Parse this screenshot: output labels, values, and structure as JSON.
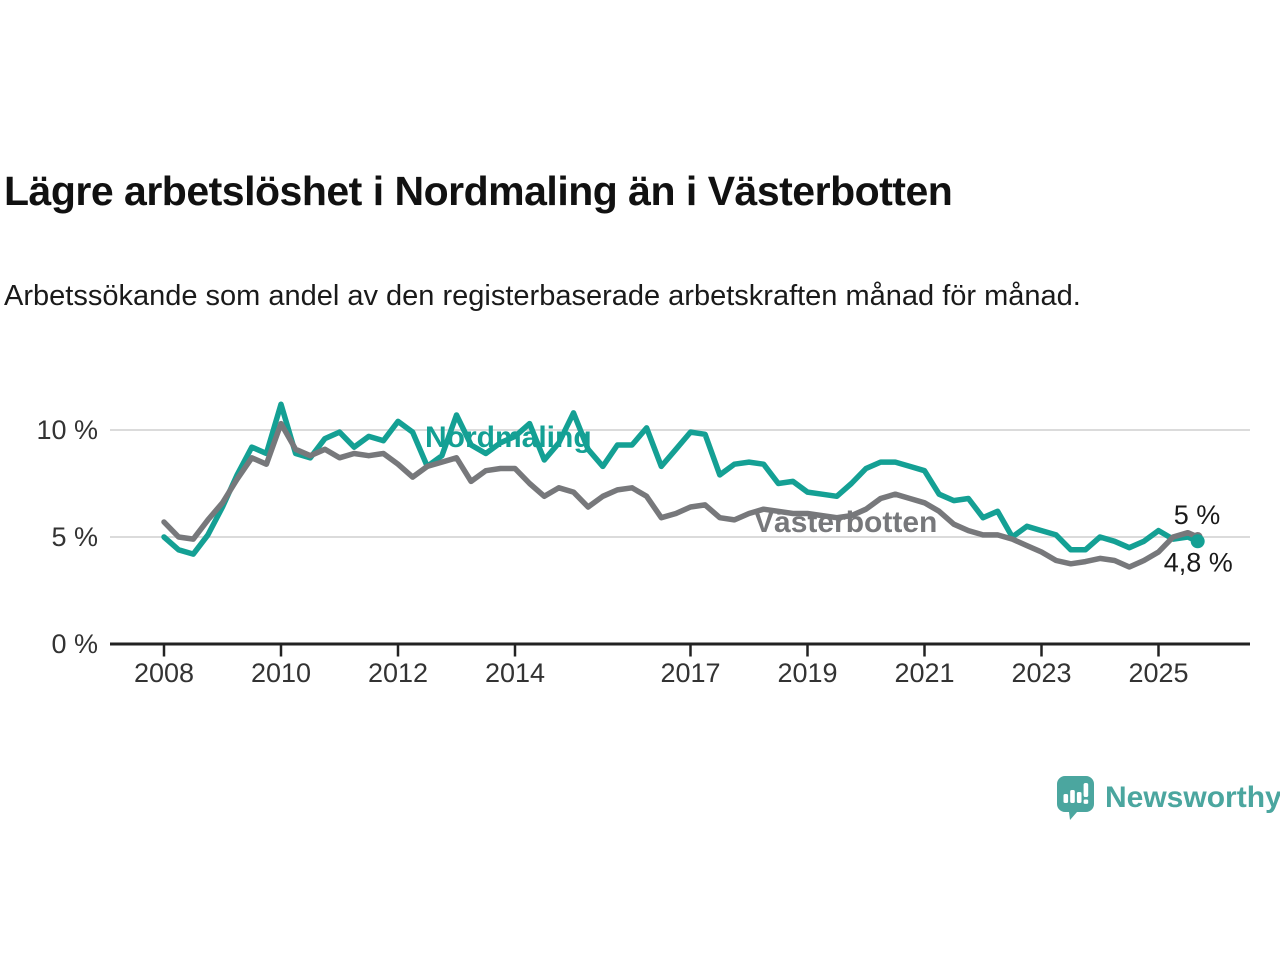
{
  "title": "Lägre arbetslöshet i Nordmaling än i Västerbotten",
  "subtitle": "Arbetssökande som andel av den registerbaserade arbetskraften månad för månad.",
  "brand": {
    "name": "Newsworthy",
    "color": "#4BA69F",
    "icon": "newsworthy-speech-bubble-bar-chart-icon"
  },
  "chart_data": {
    "type": "line",
    "title": "Lägre arbetslöshet i Nordmaling än i Västerbotten",
    "xlabel": "",
    "ylabel": "",
    "grid": "horizontal",
    "grid_color": "#DBDBDB",
    "axis_color": "#222222",
    "tick_label_color": "#333333",
    "value_label_color": "#1a1a1a",
    "ylim": [
      0,
      11.6
    ],
    "xlim": [
      2007.9,
      2025.95
    ],
    "y_ticks": [
      {
        "value": 0,
        "label": "0 %"
      },
      {
        "value": 5,
        "label": "5 %"
      },
      {
        "value": 10,
        "label": "10 %"
      }
    ],
    "x_ticks": [
      {
        "value": 2008,
        "label": "2008"
      },
      {
        "value": 2010,
        "label": "2010"
      },
      {
        "value": 2012,
        "label": "2012"
      },
      {
        "value": 2014,
        "label": "2014"
      },
      {
        "value": 2017,
        "label": "2017"
      },
      {
        "value": 2019,
        "label": "2019"
      },
      {
        "value": 2021,
        "label": "2021"
      },
      {
        "value": 2023,
        "label": "2023"
      },
      {
        "value": 2025,
        "label": "2025"
      }
    ],
    "x": [
      2008,
      2008.25,
      2008.5,
      2008.75,
      2009,
      2009.25,
      2009.5,
      2009.75,
      2010,
      2010.25,
      2010.5,
      2010.75,
      2011,
      2011.25,
      2011.5,
      2011.75,
      2012,
      2012.25,
      2012.5,
      2012.75,
      2013,
      2013.25,
      2013.5,
      2013.75,
      2014,
      2014.25,
      2014.5,
      2014.75,
      2015,
      2015.25,
      2015.5,
      2015.75,
      2016,
      2016.25,
      2016.5,
      2016.75,
      2017,
      2017.25,
      2017.5,
      2017.75,
      2018,
      2018.25,
      2018.5,
      2018.75,
      2019,
      2019.25,
      2019.5,
      2019.75,
      2020,
      2020.25,
      2020.5,
      2020.75,
      2021,
      2021.25,
      2021.5,
      2021.75,
      2022,
      2022.25,
      2022.5,
      2022.75,
      2023,
      2023.25,
      2023.5,
      2023.75,
      2024,
      2024.25,
      2024.5,
      2024.75,
      2025,
      2025.25,
      2025.5,
      2025.67
    ],
    "series": [
      {
        "name": "Nordmaling",
        "color": "#14A094",
        "end_label": "4,8 %",
        "latest_value": 4.8,
        "values": [
          5.0,
          4.4,
          4.2,
          5.1,
          6.4,
          7.9,
          9.2,
          8.9,
          11.2,
          8.9,
          8.7,
          9.6,
          9.9,
          9.2,
          9.7,
          9.5,
          10.4,
          9.9,
          8.3,
          8.8,
          10.7,
          9.3,
          8.9,
          9.4,
          9.7,
          10.3,
          8.6,
          9.4,
          10.8,
          9.1,
          8.3,
          9.3,
          9.3,
          10.1,
          8.3,
          9.1,
          9.9,
          9.8,
          7.9,
          8.4,
          8.5,
          8.4,
          7.5,
          7.6,
          7.1,
          7.0,
          6.9,
          7.5,
          8.2,
          8.5,
          8.5,
          8.3,
          8.1,
          7.0,
          6.7,
          6.8,
          5.9,
          6.2,
          5.0,
          5.5,
          5.3,
          5.1,
          4.4,
          4.4,
          5.0,
          4.8,
          4.5,
          4.8,
          5.3,
          4.9,
          5.0,
          4.8
        ]
      },
      {
        "name": "Västerbotten",
        "color": "#77787B",
        "end_label": "5 %",
        "latest_value": 5.0,
        "values": [
          5.7,
          5.0,
          4.9,
          5.8,
          6.6,
          7.7,
          8.7,
          8.4,
          10.3,
          9.1,
          8.8,
          9.1,
          8.7,
          8.9,
          8.8,
          8.9,
          8.4,
          7.8,
          8.3,
          8.5,
          8.7,
          7.6,
          8.1,
          8.2,
          8.2,
          7.5,
          6.9,
          7.3,
          7.1,
          6.4,
          6.9,
          7.2,
          7.3,
          6.9,
          5.9,
          6.1,
          6.4,
          6.5,
          5.9,
          5.8,
          6.1,
          6.3,
          6.2,
          6.1,
          6.1,
          6.0,
          5.9,
          6.0,
          6.3,
          6.8,
          7.0,
          6.8,
          6.6,
          6.2,
          5.6,
          5.3,
          5.1,
          5.1,
          4.9,
          4.6,
          4.3,
          3.9,
          3.75,
          3.85,
          4.0,
          3.9,
          3.6,
          3.9,
          4.3,
          5.0,
          5.2,
          5.0
        ]
      }
    ]
  }
}
